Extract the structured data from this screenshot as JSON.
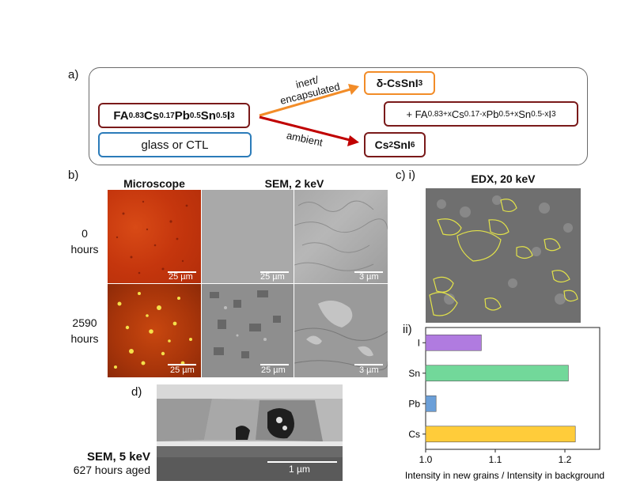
{
  "panels": {
    "a": "a)",
    "b": "b)",
    "c": "c) i)",
    "c_ii": "ii)",
    "d": "d)"
  },
  "scheme": {
    "precursor": {
      "p1": "FA",
      "s1": "0.83",
      "p2": " Cs",
      "s2": "0.17",
      "p3": " Pb",
      "s3": "0.5",
      "p4": " Sn",
      "s4": "0.5",
      "p5": " I",
      "s5": "3"
    },
    "substrate": "glass or CTL",
    "inert_label_1": "inert/",
    "inert_label_2": "encapsulated",
    "ambient_label": "ambient",
    "product_inert": {
      "p1": "δ-CsSnI",
      "s1": "3"
    },
    "product_inert_extra": {
      "p0": "+  FA",
      "s1": "0.83+x",
      "p2": " Cs",
      "s2": "0.17-x",
      "p3": " Pb",
      "s3": "0.5+x",
      "p4": " Sn",
      "s4": "0.5-x",
      "p5": " I",
      "s5": "3"
    },
    "product_ambient": {
      "p1": "Cs",
      "s1": "2",
      "p2": "SnI",
      "s2": "6"
    },
    "colors": {
      "orange": "#f28c28",
      "red": "#c00000",
      "darkred": "#7a1a1a",
      "blue": "#2b7bb9"
    }
  },
  "grid_b": {
    "col_microscope": "Microscope",
    "col_sem": "SEM, 2 keV",
    "row0_line1": "0",
    "row0_line2": "hours",
    "row1_line1": "2590",
    "row1_line2": "hours",
    "scale_25": "25 µm",
    "scale_3": "3 µm"
  },
  "edx": {
    "title": "EDX, 20 keV"
  },
  "chart_data": {
    "type": "bar",
    "orientation": "horizontal",
    "categories": [
      "I",
      "Sn",
      "Pb",
      "Cs"
    ],
    "values": [
      1.08,
      1.205,
      1.015,
      1.215
    ],
    "colors": [
      "#b07be0",
      "#72d89a",
      "#6b9fd8",
      "#ffcc3a"
    ],
    "xlim": [
      1.0,
      1.25
    ],
    "xticks": [
      "1.0",
      "1.1",
      "1.2"
    ],
    "xlabel": "Intensity in new grains / Intensity in background"
  },
  "d": {
    "label_1": "SEM, 5 keV",
    "label_2": "627 hours aged",
    "scale": "1 µm"
  }
}
